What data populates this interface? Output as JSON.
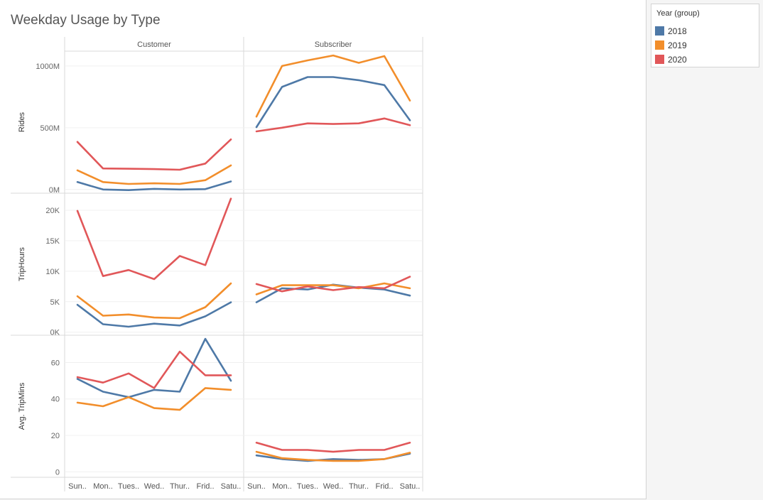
{
  "title": "Weekday Usage by Type",
  "legend": {
    "title": "Year (group)",
    "items": [
      {
        "label": "2018",
        "color": "#4e79a7"
      },
      {
        "label": "2019",
        "color": "#f28e2b"
      },
      {
        "label": "2020",
        "color": "#e15759"
      }
    ]
  },
  "chart_data": {
    "type": "line",
    "columns": [
      "Customer",
      "Subscriber"
    ],
    "categories": [
      "Sun..",
      "Mon..",
      "Tues..",
      "Wed..",
      "Thur..",
      "Frid..",
      "Satu.."
    ],
    "rows": [
      {
        "ylabel": "Rides",
        "ylim": [
          -30000000,
          1120000000
        ],
        "ticks": [
          {
            "value": 0,
            "label": "0M"
          },
          {
            "value": 500000000,
            "label": "500M"
          },
          {
            "value": 1000000000,
            "label": "1000M"
          }
        ],
        "panels": [
          {
            "column": "Customer",
            "series": [
              {
                "name": "2018",
                "values": [
                  60000000,
                  0,
                  -5000000,
                  5000000,
                  0,
                  3000000,
                  65000000
                ]
              },
              {
                "name": "2019",
                "values": [
                  155000000,
                  60000000,
                  45000000,
                  50000000,
                  45000000,
                  75000000,
                  195000000
                ]
              },
              {
                "name": "2020",
                "values": [
                  385000000,
                  170000000,
                  168000000,
                  165000000,
                  160000000,
                  210000000,
                  405000000
                ]
              }
            ]
          },
          {
            "column": "Subscriber",
            "series": [
              {
                "name": "2018",
                "values": [
                  505000000,
                  830000000,
                  910000000,
                  910000000,
                  885000000,
                  845000000,
                  560000000
                ]
              },
              {
                "name": "2019",
                "values": [
                  590000000,
                  1000000000,
                  1045000000,
                  1085000000,
                  1025000000,
                  1080000000,
                  720000000
                ]
              },
              {
                "name": "2020",
                "values": [
                  470000000,
                  500000000,
                  535000000,
                  530000000,
                  535000000,
                  575000000,
                  520000000
                ]
              }
            ]
          }
        ]
      },
      {
        "ylabel": "TripHours",
        "ylim": [
          -500,
          22800
        ],
        "ticks": [
          {
            "value": 0,
            "label": "0K"
          },
          {
            "value": 5000,
            "label": "5K"
          },
          {
            "value": 10000,
            "label": "10K"
          },
          {
            "value": 15000,
            "label": "15K"
          },
          {
            "value": 20000,
            "label": "20K"
          }
        ],
        "panels": [
          {
            "column": "Customer",
            "series": [
              {
                "name": "2018",
                "values": [
                  4500,
                  1300,
                  900,
                  1400,
                  1100,
                  2600,
                  4900
                ]
              },
              {
                "name": "2019",
                "values": [
                  5900,
                  2700,
                  2900,
                  2400,
                  2300,
                  4100,
                  8000
                ]
              },
              {
                "name": "2020",
                "values": [
                  19900,
                  9200,
                  10200,
                  8700,
                  12500,
                  11000,
                  21900
                ]
              }
            ]
          },
          {
            "column": "Subscriber",
            "series": [
              {
                "name": "2018",
                "values": [
                  4900,
                  7200,
                  7000,
                  7800,
                  7300,
                  7000,
                  6000
                ]
              },
              {
                "name": "2019",
                "values": [
                  6200,
                  7700,
                  7700,
                  7700,
                  7200,
                  8000,
                  7200
                ]
              },
              {
                "name": "2020",
                "values": [
                  7900,
                  6700,
                  7500,
                  6900,
                  7400,
                  7200,
                  9100
                ]
              }
            ]
          }
        ]
      },
      {
        "ylabel": "Avg. TripMins",
        "ylim": [
          -3,
          75
        ],
        "ticks": [
          {
            "value": 0,
            "label": "0"
          },
          {
            "value": 20,
            "label": "20"
          },
          {
            "value": 40,
            "label": "40"
          },
          {
            "value": 60,
            "label": "60"
          }
        ],
        "panels": [
          {
            "column": "Customer",
            "series": [
              {
                "name": "2018",
                "values": [
                  51,
                  44,
                  41,
                  45,
                  44,
                  73,
                  50
                ]
              },
              {
                "name": "2019",
                "values": [
                  38,
                  36,
                  41,
                  35,
                  34,
                  46,
                  45
                ]
              },
              {
                "name": "2020",
                "values": [
                  52,
                  49,
                  54,
                  46,
                  66,
                  53,
                  53
                ]
              }
            ]
          },
          {
            "column": "Subscriber",
            "series": [
              {
                "name": "2018",
                "values": [
                  9,
                  7,
                  6,
                  7,
                  6.5,
                  7,
                  10
                ]
              },
              {
                "name": "2019",
                "values": [
                  11,
                  7.5,
                  6.5,
                  6,
                  6,
                  7,
                  10.5
                ]
              },
              {
                "name": "2020",
                "values": [
                  16,
                  12,
                  12,
                  11,
                  12,
                  12,
                  16
                ]
              }
            ]
          }
        ]
      }
    ]
  }
}
